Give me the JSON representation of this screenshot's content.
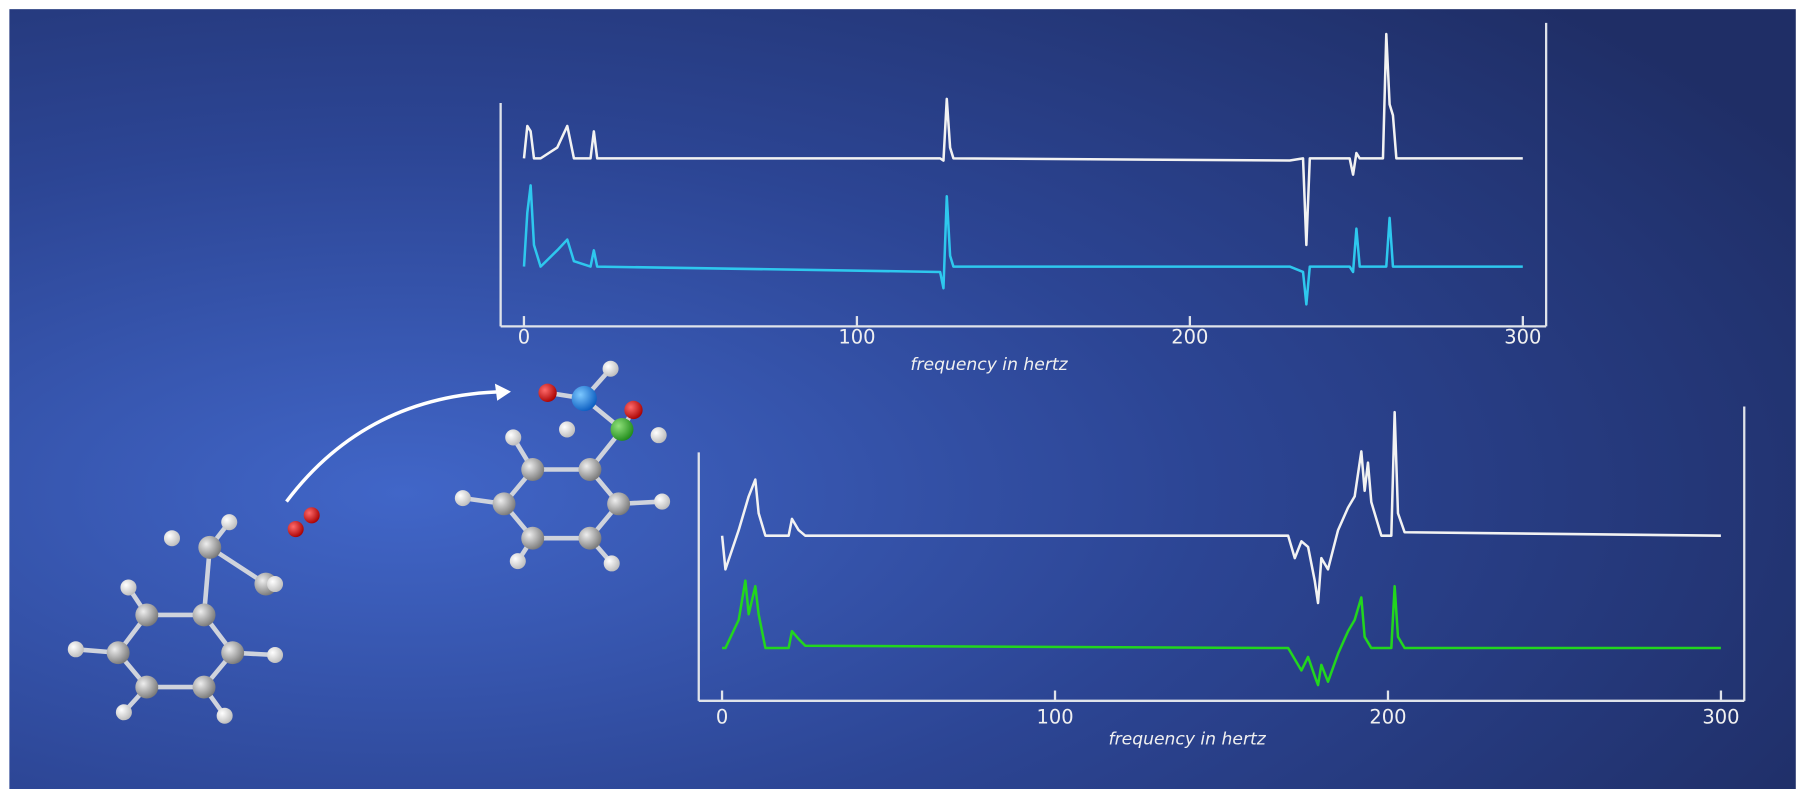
{
  "chart_data": [
    {
      "type": "line",
      "x_label": "frequency in hertz",
      "x": [
        0,
        1,
        2,
        3,
        5,
        10,
        13,
        15,
        20,
        21,
        22,
        125,
        126,
        127,
        128,
        129,
        230,
        234,
        235,
        236,
        248,
        249,
        250,
        251,
        258,
        259,
        260,
        261,
        262,
        300
      ],
      "series": [
        {
          "color": "#f2f2f2",
          "values": [
            10,
            13,
            12.5,
            10,
            10,
            11,
            13,
            10,
            10,
            12.5,
            10,
            10,
            9.8,
            15.5,
            11,
            10,
            9.8,
            10,
            2,
            10,
            10,
            8.5,
            10.5,
            10,
            10,
            21.5,
            15,
            14,
            10,
            10
          ]
        },
        {
          "color": "#2ec8ee",
          "values": [
            0,
            5,
            7.5,
            2,
            0,
            1.5,
            2.5,
            0.5,
            0,
            1.5,
            0,
            -0.5,
            -2,
            6.5,
            1,
            0,
            0,
            -0.5,
            -3.5,
            0,
            0,
            -0.5,
            3.5,
            0,
            0,
            0,
            4.5,
            0,
            0,
            0
          ]
        }
      ],
      "xlim": [
        -7,
        307
      ],
      "xticks": [
        0,
        100,
        200,
        300
      ],
      "ylim": [
        -5,
        22
      ]
    },
    {
      "type": "line",
      "x_label": "frequency in hertz",
      "x": [
        0,
        1,
        5,
        7,
        8,
        10,
        11,
        13,
        20,
        21,
        23,
        25,
        170,
        172,
        174,
        176,
        178,
        179,
        180,
        182,
        185,
        188,
        190,
        192,
        193,
        194,
        195,
        198,
        201,
        202,
        203,
        205,
        300
      ],
      "series": [
        {
          "color": "#f2f2f2",
          "values": [
            10,
            7,
            10.5,
            12.5,
            13.5,
            15,
            12,
            10,
            10,
            11.5,
            10.5,
            10,
            10,
            8,
            9.5,
            9,
            6,
            4,
            8,
            7,
            10.5,
            12.5,
            13.5,
            17.5,
            14,
            16.5,
            13,
            10,
            10,
            21,
            12,
            10.3,
            10
          ]
        },
        {
          "color": "#22d61e",
          "values": [
            0,
            0,
            2.5,
            6,
            3,
            5.5,
            3,
            0,
            0,
            1.5,
            0.8,
            0.2,
            0,
            -1,
            -2,
            -0.8,
            -2.5,
            -3.3,
            -1.5,
            -3,
            -0.5,
            1.5,
            2.5,
            4.5,
            1,
            0.5,
            0,
            0,
            0,
            5.5,
            1,
            0,
            0
          ]
        }
      ],
      "xlim": [
        -7,
        307
      ],
      "xticks": [
        0,
        100,
        200,
        300
      ],
      "ylim": [
        -4.5,
        21.5
      ]
    }
  ]
}
